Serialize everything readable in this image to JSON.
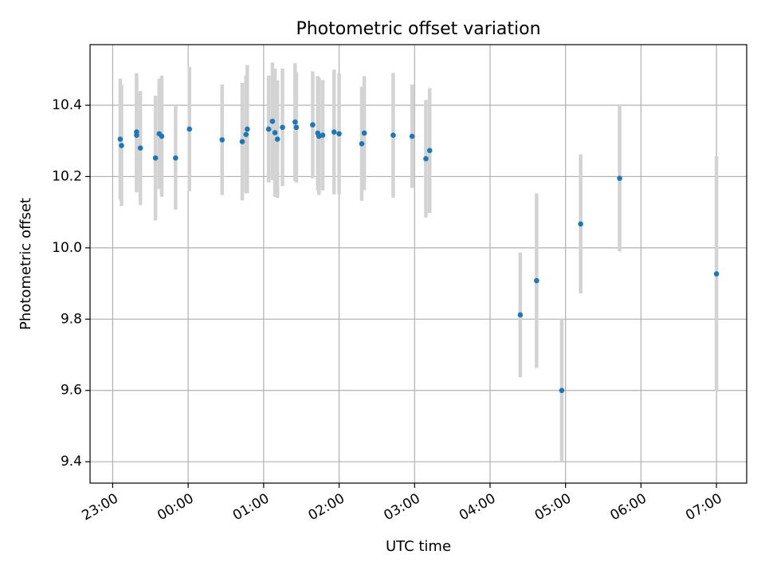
{
  "chart_data": {
    "type": "scatter",
    "title": "Photometric offset variation",
    "xlabel": "UTC time",
    "ylabel": "Photometric offset",
    "x_axis": {
      "unit": "time (hh:mm, starting previous day)",
      "min": "22:42",
      "max": "07:24",
      "ticks": [
        "23:00",
        "00:00",
        "01:00",
        "02:00",
        "03:00",
        "04:00",
        "05:00",
        "06:00",
        "07:00"
      ]
    },
    "y_axis": {
      "min": 9.34,
      "max": 10.57,
      "ticks": [
        "9.4",
        "9.6",
        "9.8",
        "10.0",
        "10.2",
        "10.4"
      ]
    },
    "grid": true,
    "marker_color": "#1f77b4",
    "errorbar_color": "#d3d3d3",
    "series": [
      {
        "points": [
          {
            "t": "23:06",
            "y": 10.305,
            "err": 0.17
          },
          {
            "t": "23:07",
            "y": 10.287,
            "err": 0.17
          },
          {
            "t": "23:19",
            "y": 10.325,
            "err": 0.165
          },
          {
            "t": "23:19",
            "y": 10.316,
            "err": 0.16
          },
          {
            "t": "23:22",
            "y": 10.28,
            "err": 0.16
          },
          {
            "t": "23:34",
            "y": 10.252,
            "err": 0.175
          },
          {
            "t": "23:37",
            "y": 10.32,
            "err": 0.155
          },
          {
            "t": "23:39",
            "y": 10.313,
            "err": 0.17
          },
          {
            "t": "23:50",
            "y": 10.252,
            "err": 0.145
          },
          {
            "t": "00:01",
            "y": 10.333,
            "err": 0.175
          },
          {
            "t": "00:27",
            "y": 10.303,
            "err": 0.155
          },
          {
            "t": "00:43",
            "y": 10.298,
            "err": 0.165
          },
          {
            "t": "00:46",
            "y": 10.318,
            "err": 0.165
          },
          {
            "t": "00:47",
            "y": 10.333,
            "err": 0.18
          },
          {
            "t": "01:04",
            "y": 10.333,
            "err": 0.15
          },
          {
            "t": "01:07",
            "y": 10.355,
            "err": 0.165
          },
          {
            "t": "01:09",
            "y": 10.323,
            "err": 0.18
          },
          {
            "t": "01:11",
            "y": 10.305,
            "err": 0.165
          },
          {
            "t": "01:15",
            "y": 10.338,
            "err": 0.165
          },
          {
            "t": "01:25",
            "y": 10.353,
            "err": 0.165
          },
          {
            "t": "01:26",
            "y": 10.338,
            "err": 0.155
          },
          {
            "t": "01:39",
            "y": 10.345,
            "err": 0.15
          },
          {
            "t": "01:43",
            "y": 10.322,
            "err": 0.16
          },
          {
            "t": "01:44",
            "y": 10.313,
            "err": 0.165
          },
          {
            "t": "01:47",
            "y": 10.316,
            "err": 0.155
          },
          {
            "t": "01:56",
            "y": 10.325,
            "err": 0.175
          },
          {
            "t": "02:00",
            "y": 10.32,
            "err": 0.17
          },
          {
            "t": "02:18",
            "y": 10.292,
            "err": 0.16
          },
          {
            "t": "02:20",
            "y": 10.322,
            "err": 0.16
          },
          {
            "t": "02:43",
            "y": 10.316,
            "err": 0.175
          },
          {
            "t": "02:58",
            "y": 10.313,
            "err": 0.145
          },
          {
            "t": "03:09",
            "y": 10.25,
            "err": 0.165
          },
          {
            "t": "03:12",
            "y": 10.273,
            "err": 0.175
          },
          {
            "t": "04:24",
            "y": 9.812,
            "err": 0.175
          },
          {
            "t": "04:37",
            "y": 9.908,
            "err": 0.245
          },
          {
            "t": "04:57",
            "y": 9.6,
            "err": 0.2
          },
          {
            "t": "05:12",
            "y": 10.067,
            "err": 0.195
          },
          {
            "t": "05:43",
            "y": 10.195,
            "err": 0.205
          },
          {
            "t": "07:00",
            "y": 9.927,
            "err": 0.33
          }
        ]
      }
    ]
  }
}
